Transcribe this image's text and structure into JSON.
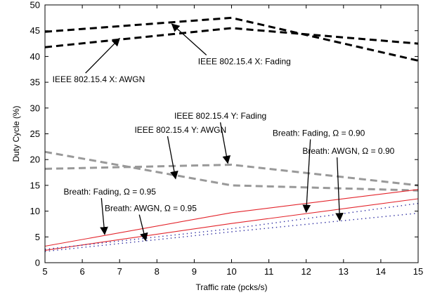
{
  "chart_data": {
    "type": "line",
    "xlabel": "Traffic rate (pcks/s)",
    "ylabel": "Duty Cycle (%)",
    "xlim": [
      5,
      15
    ],
    "ylim": [
      0,
      50
    ],
    "xticks": [
      5,
      6,
      7,
      8,
      9,
      10,
      11,
      12,
      13,
      14,
      15
    ],
    "yticks": [
      0,
      5,
      10,
      15,
      20,
      25,
      30,
      35,
      40,
      45,
      50
    ],
    "grid": false,
    "series": [
      {
        "id": "x-fading",
        "color": "#000000",
        "style": "dashed-thick",
        "x": [
          5,
          10,
          15
        ],
        "y": [
          44.8,
          47.5,
          39.2
        ]
      },
      {
        "id": "x-awgn",
        "color": "#000000",
        "style": "dashed-thick",
        "x": [
          5,
          10,
          15
        ],
        "y": [
          41.8,
          45.5,
          42.5
        ]
      },
      {
        "id": "y-fading",
        "color": "#999999",
        "style": "dashed-thick",
        "x": [
          5,
          10,
          15
        ],
        "y": [
          21.5,
          15.0,
          14.0
        ]
      },
      {
        "id": "y-awgn",
        "color": "#999999",
        "style": "dashed-thick",
        "x": [
          5,
          10,
          15
        ],
        "y": [
          18.2,
          19.0,
          15.0
        ]
      },
      {
        "id": "breath-fading",
        "color": "#e3242b",
        "style": "solid",
        "x": [
          5,
          10,
          15
        ],
        "y": [
          3.2,
          9.7,
          14.2
        ]
      },
      {
        "id": "breath-awgn",
        "color": "#e3242b",
        "style": "solid",
        "x": [
          5,
          10,
          15
        ],
        "y": [
          2.4,
          7.6,
          12.4
        ]
      },
      {
        "id": "breath-fading-dots",
        "color": "#2b2ba0",
        "style": "dotted",
        "x": [
          5,
          10,
          15
        ],
        "y": [
          2.6,
          6.6,
          11.5
        ]
      },
      {
        "id": "breath-awgn-dots",
        "color": "#2b2ba0",
        "style": "dotted",
        "x": [
          5,
          10,
          15
        ],
        "y": [
          2.2,
          6.0,
          9.6
        ]
      }
    ],
    "annotations": [
      {
        "text": "IEEE 802.15.4 X: Fading",
        "tx": 9.1,
        "ty": 38.5,
        "ax": 8.4,
        "ay": 46.3,
        "anchor": "start",
        "label_offset": [
          0,
          0
        ]
      },
      {
        "text": "IEEE 802.15.4 X: AWGN",
        "tx": 5.2,
        "ty": 35.0,
        "ax": 7.0,
        "ay": 43.5,
        "anchor": "start",
        "label_offset": [
          0,
          0
        ]
      },
      {
        "text": "IEEE 802.15.4 Y: Fading",
        "tx": 9.7,
        "ty": 27.9,
        "ax": 9.9,
        "ay": 19.3,
        "anchor": "middle",
        "label_offset": [
          0,
          0
        ]
      },
      {
        "text": "IEEE 802.15.4 Y: AWGN",
        "tx": 7.4,
        "ty": 25.2,
        "ax": 8.5,
        "ay": 16.3,
        "anchor": "start",
        "label_offset": [
          0,
          0
        ]
      },
      {
        "text": "Breath: Fading, Ω = 0.90",
        "tx": 11.1,
        "ty": 24.6,
        "ax": 12.0,
        "ay": 9.8,
        "anchor": "start",
        "label_offset": [
          0,
          0
        ]
      },
      {
        "text": "Breath: AWGN, Ω = 0.90",
        "tx": 11.9,
        "ty": 21.1,
        "ax": 12.9,
        "ay": 8.2,
        "anchor": "start",
        "label_offset": [
          0,
          0
        ]
      },
      {
        "text": "Breath: Fading, Ω = 0.95",
        "tx": 5.5,
        "ty": 13.2,
        "ax": 6.6,
        "ay": 5.5,
        "anchor": "start",
        "label_offset": [
          0,
          0
        ]
      },
      {
        "text": "Breath: AWGN, Ω = 0.95",
        "tx": 6.6,
        "ty": 10.0,
        "ax": 7.7,
        "ay": 4.3,
        "anchor": "start",
        "label_offset": [
          0,
          0
        ]
      }
    ]
  }
}
